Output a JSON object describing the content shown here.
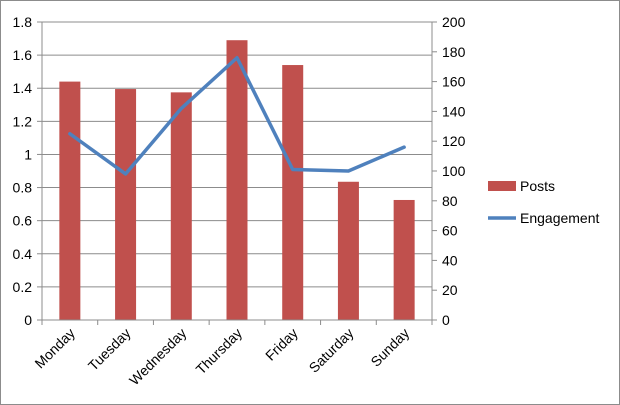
{
  "chart_data": {
    "type": "bar",
    "categories": [
      "Monday",
      "Tuesday",
      "Wednesday",
      "Thursday",
      "Friday",
      "Saturday",
      "Sunday"
    ],
    "series": [
      {
        "name": "Posts",
        "type": "bar",
        "axis": "left",
        "color": "#c0504d",
        "values": [
          1.44,
          1.395,
          1.375,
          1.69,
          1.54,
          0.835,
          0.725
        ]
      },
      {
        "name": "Engagement",
        "type": "line",
        "axis": "right",
        "color": "#4f81bd",
        "values": [
          125,
          98,
          142,
          176,
          101,
          100,
          116
        ]
      }
    ],
    "y_left": {
      "min": 0,
      "max": 1.8,
      "ticks": [
        "0",
        "0.2",
        "0.4",
        "0.6",
        "0.8",
        "1",
        "1.2",
        "1.4",
        "1.6",
        "1.8"
      ]
    },
    "y_right": {
      "min": 0,
      "max": 200,
      "ticks": [
        "0",
        "20",
        "40",
        "60",
        "80",
        "100",
        "120",
        "140",
        "160",
        "180",
        "200"
      ]
    },
    "grid": "horizontal",
    "legend_position": "right",
    "title": "",
    "xlabel": "",
    "ylabel": ""
  }
}
